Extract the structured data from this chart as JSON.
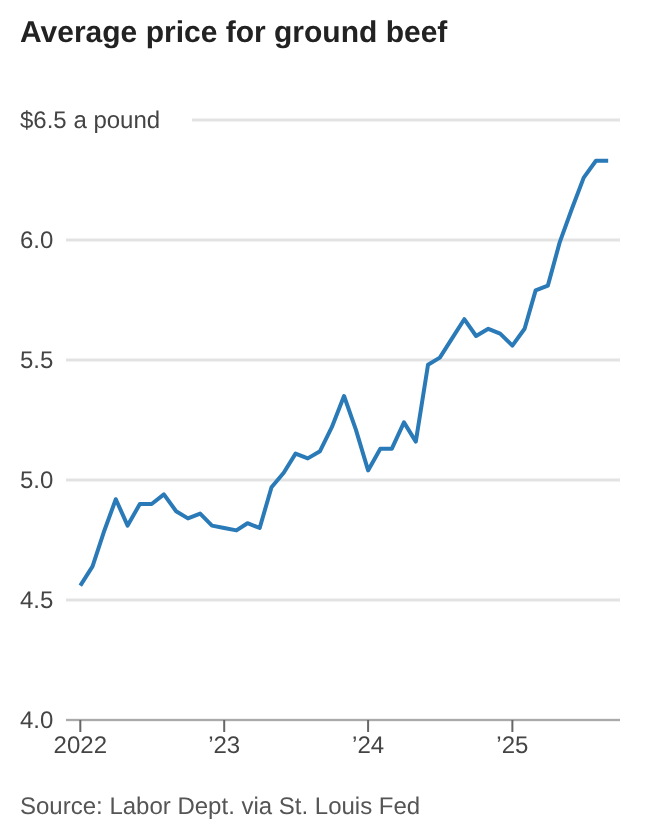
{
  "chart_data": {
    "type": "line",
    "title": "Average price for ground beef",
    "x": [
      "2022-01",
      "2022-02",
      "2022-03",
      "2022-04",
      "2022-05",
      "2022-06",
      "2022-07",
      "2022-08",
      "2022-09",
      "2022-10",
      "2022-11",
      "2022-12",
      "2023-01",
      "2023-02",
      "2023-03",
      "2023-04",
      "2023-05",
      "2023-06",
      "2023-07",
      "2023-08",
      "2023-09",
      "2023-10",
      "2023-11",
      "2023-12",
      "2024-01",
      "2024-02",
      "2024-03",
      "2024-04",
      "2024-05",
      "2024-06",
      "2024-07",
      "2024-08",
      "2024-09",
      "2024-10",
      "2024-11",
      "2024-12",
      "2025-01",
      "2025-02",
      "2025-03",
      "2025-04",
      "2025-05",
      "2025-06",
      "2025-07",
      "2025-08",
      "2025-09"
    ],
    "series": [
      {
        "color": "#2a7ab8",
        "values": [
          4.56,
          4.64,
          4.78,
          4.92,
          4.81,
          4.9,
          4.9,
          4.94,
          4.87,
          4.84,
          4.86,
          4.81,
          4.8,
          4.79,
          4.82,
          4.8,
          4.97,
          5.03,
          5.11,
          5.09,
          5.12,
          5.22,
          5.35,
          5.21,
          5.04,
          5.13,
          5.13,
          5.24,
          5.16,
          5.48,
          5.51,
          5.59,
          5.67,
          5.6,
          5.63,
          5.61,
          5.56,
          5.63,
          5.79,
          5.81,
          5.99,
          6.13,
          6.26,
          6.33,
          6.33
        ]
      }
    ],
    "xlim": [
      "2021-08",
      "2025-10"
    ],
    "xticks": [
      {
        "value": "2022-01",
        "label": "2022"
      },
      {
        "value": "2023-01",
        "label": "’23"
      },
      {
        "value": "2024-01",
        "label": "’24"
      },
      {
        "value": "2025-01",
        "label": "’25"
      }
    ],
    "ylim": [
      4,
      6.5
    ],
    "yticks": [
      {
        "value": 4,
        "label": "4.0"
      },
      {
        "value": 4.5,
        "label": "4.5"
      },
      {
        "value": 5,
        "label": "5.0"
      },
      {
        "value": 5.5,
        "label": "5.5"
      },
      {
        "value": 6,
        "label": "6.0"
      },
      {
        "value": 6.5,
        "label": "$6.5 a pound"
      }
    ],
    "grid": "y",
    "legend": false,
    "marker": "none",
    "line_style": "solid",
    "annotations": [
      "Source: Labor Dept. via St. Louis Fed"
    ]
  }
}
